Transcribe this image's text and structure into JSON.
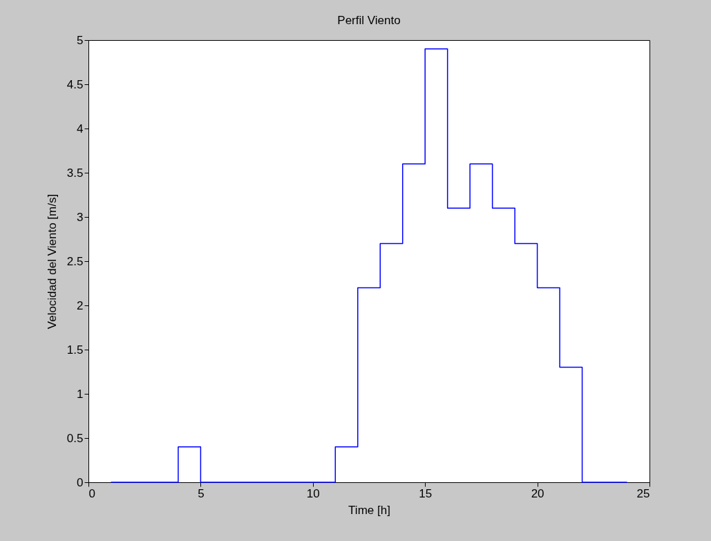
{
  "chart_data": {
    "type": "step",
    "title": "Perfil Viento",
    "xlabel": "Time [h]",
    "ylabel": "Velocidad del Viento [m/s]",
    "x": [
      1,
      2,
      3,
      4,
      5,
      6,
      7,
      8,
      9,
      10,
      11,
      12,
      13,
      14,
      15,
      16,
      17,
      18,
      19,
      20,
      21,
      22,
      23,
      24
    ],
    "series": [
      {
        "color": "#0000ff",
        "values": [
          0,
          0,
          0,
          0.4,
          0,
          0,
          0,
          0,
          0,
          0,
          0.4,
          2.2,
          2.7,
          3.6,
          4.9,
          3.1,
          3.6,
          3.1,
          2.7,
          2.2,
          1.3,
          0,
          0,
          0
        ]
      }
    ],
    "xlim": [
      0,
      25
    ],
    "xticks": [
      0,
      5,
      10,
      15,
      20,
      25
    ],
    "ylim": [
      0,
      5
    ],
    "yticks": [
      0,
      0.5,
      1,
      1.5,
      2,
      2.5,
      3,
      3.5,
      4,
      4.5,
      5
    ],
    "grid": false,
    "legend": false
  }
}
